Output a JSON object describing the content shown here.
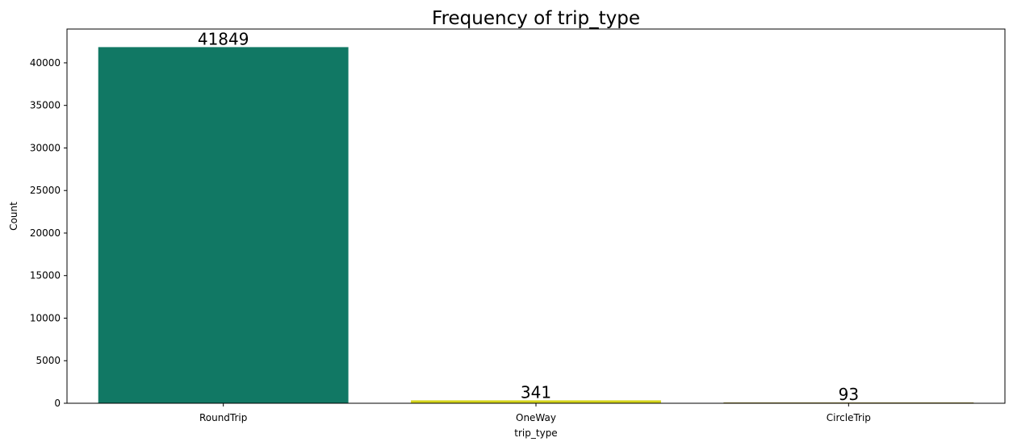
{
  "chart_data": {
    "type": "bar",
    "title": "Frequency of trip_type",
    "xlabel": "trip_type",
    "ylabel": "Count",
    "categories": [
      "RoundTrip",
      "OneWay",
      "CircleTrip"
    ],
    "values": [
      41849,
      341,
      93
    ],
    "data_labels": [
      "41849",
      "341",
      "93"
    ],
    "colors": [
      "#117864",
      "#d4d41c",
      "#8c7a1e"
    ],
    "ylim": [
      0,
      43974
    ],
    "yticks": [
      0,
      5000,
      10000,
      15000,
      20000,
      25000,
      30000,
      35000,
      40000
    ],
    "ytick_labels": [
      "0",
      "5000",
      "10000",
      "15000",
      "20000",
      "25000",
      "30000",
      "35000",
      "40000"
    ],
    "grid": false,
    "legend": "none"
  }
}
